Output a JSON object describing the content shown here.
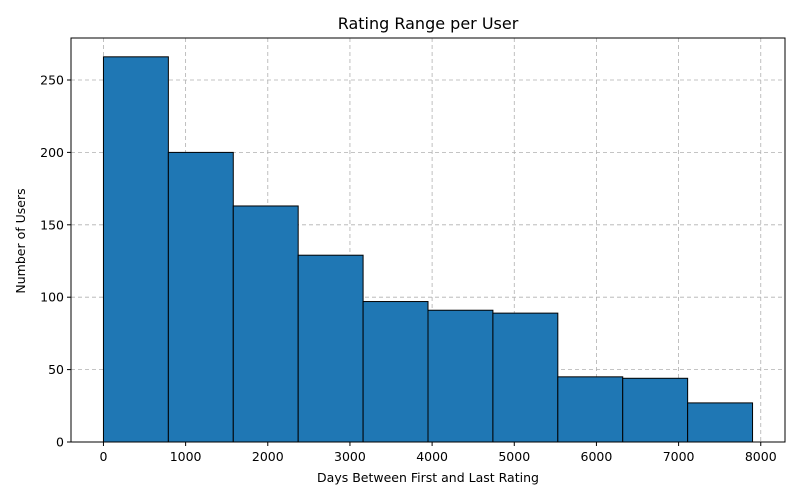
{
  "chart_data": {
    "type": "bar",
    "title": "Rating Range per User",
    "xlabel": "Days Between First and Last Rating",
    "ylabel": "Number of Users",
    "bins": [
      {
        "start": 0,
        "end": 790,
        "count": 266
      },
      {
        "start": 790,
        "end": 1580,
        "count": 200
      },
      {
        "start": 1580,
        "end": 2370,
        "count": 163
      },
      {
        "start": 2370,
        "end": 3160,
        "count": 129
      },
      {
        "start": 3160,
        "end": 3950,
        "count": 97
      },
      {
        "start": 3950,
        "end": 4740,
        "count": 91
      },
      {
        "start": 4740,
        "end": 5530,
        "count": 89
      },
      {
        "start": 5530,
        "end": 6320,
        "count": 45
      },
      {
        "start": 6320,
        "end": 7110,
        "count": 44
      },
      {
        "start": 7110,
        "end": 7900,
        "count": 27
      }
    ],
    "xlim": [
      -395,
      8295
    ],
    "ylim": [
      0,
      279
    ],
    "xticks": [
      0,
      1000,
      2000,
      3000,
      4000,
      5000,
      6000,
      7000,
      8000
    ],
    "yticks": [
      0,
      50,
      100,
      150,
      200,
      250
    ],
    "grid": true,
    "bar_color": "#1f77b4",
    "edge_color": "#000000"
  }
}
